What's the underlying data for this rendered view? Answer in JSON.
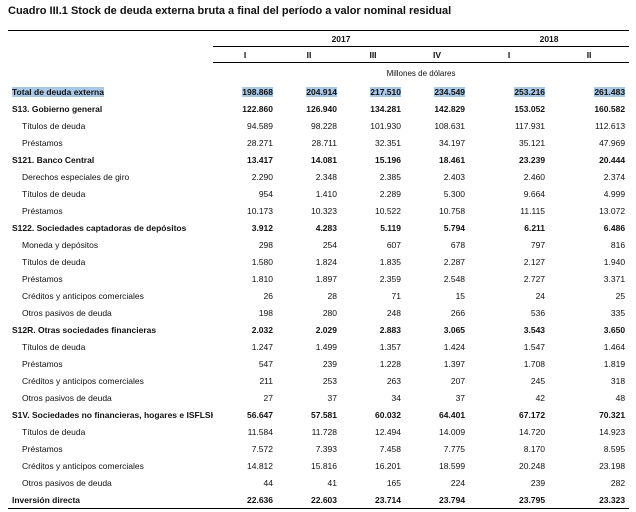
{
  "title": "Cuadro III.1 Stock de deuda externa bruta a final del período a valor nominal residual",
  "header": {
    "years": [
      {
        "label": "2017",
        "span": 4
      },
      {
        "label": "2018",
        "span": 2
      }
    ],
    "quarters": [
      "I",
      "II",
      "III",
      "IV",
      "I",
      "II"
    ],
    "unit": "Millones de dólares"
  },
  "table": {
    "total": {
      "label": "Total de deuda externa",
      "values": [
        "198.868",
        "204.914",
        "217.510",
        "234.549",
        "253.216",
        "261.483"
      ]
    },
    "groups": [
      {
        "label": "S13. Gobierno general",
        "values": [
          "122.860",
          "126.940",
          "134.281",
          "142.829",
          "153.052",
          "160.582"
        ],
        "items": [
          {
            "label": "Títulos de deuda",
            "values": [
              "94.589",
              "98.228",
              "101.930",
              "108.631",
              "117.931",
              "112.613"
            ]
          },
          {
            "label": "Préstamos",
            "values": [
              "28.271",
              "28.711",
              "32.351",
              "34.197",
              "35.121",
              "47.969"
            ]
          }
        ]
      },
      {
        "label": "S121. Banco Central",
        "values": [
          "13.417",
          "14.081",
          "15.196",
          "18.461",
          "23.239",
          "20.444"
        ],
        "items": [
          {
            "label": "Derechos especiales de giro",
            "values": [
              "2.290",
              "2.348",
              "2.385",
              "2.403",
              "2.460",
              "2.374"
            ]
          },
          {
            "label": "Títulos de deuda",
            "values": [
              "954",
              "1.410",
              "2.289",
              "5.300",
              "9.664",
              "4.999"
            ]
          },
          {
            "label": "Préstamos",
            "values": [
              "10.173",
              "10.323",
              "10.522",
              "10.758",
              "11.115",
              "13.072"
            ]
          }
        ]
      },
      {
        "label": "S122. Sociedades captadoras de depósitos",
        "values": [
          "3.912",
          "4.283",
          "5.119",
          "5.794",
          "6.211",
          "6.486"
        ],
        "items": [
          {
            "label": "Moneda y depósitos",
            "values": [
              "298",
              "254",
              "607",
              "678",
              "797",
              "816"
            ]
          },
          {
            "label": "Títulos de deuda",
            "values": [
              "1.580",
              "1.824",
              "1.835",
              "2.287",
              "2.127",
              "1.940"
            ]
          },
          {
            "label": "Préstamos",
            "values": [
              "1.810",
              "1.897",
              "2.359",
              "2.548",
              "2.727",
              "3.371"
            ]
          },
          {
            "label": "Créditos y anticipos comerciales",
            "values": [
              "26",
              "28",
              "71",
              "15",
              "24",
              "25"
            ]
          },
          {
            "label": "Otros pasivos de deuda",
            "values": [
              "198",
              "280",
              "248",
              "266",
              "536",
              "335"
            ]
          }
        ]
      },
      {
        "label": "S12R. Otras sociedades financieras",
        "values": [
          "2.032",
          "2.029",
          "2.883",
          "3.065",
          "3.543",
          "3.650"
        ],
        "items": [
          {
            "label": "Títulos de deuda",
            "values": [
              "1.247",
              "1.499",
              "1.357",
              "1.424",
              "1.547",
              "1.464"
            ]
          },
          {
            "label": "Préstamos",
            "values": [
              "547",
              "239",
              "1.228",
              "1.397",
              "1.708",
              "1.819"
            ]
          },
          {
            "label": "Créditos y anticipos comerciales",
            "values": [
              "211",
              "253",
              "263",
              "207",
              "245",
              "318"
            ]
          },
          {
            "label": "Otros pasivos de deuda",
            "values": [
              "27",
              "37",
              "34",
              "37",
              "42",
              "48"
            ]
          }
        ]
      },
      {
        "label": "S1V. Sociedades no financieras, hogares e ISFLSH",
        "values": [
          "56.647",
          "57.581",
          "60.032",
          "64.401",
          "67.172",
          "70.321"
        ],
        "items": [
          {
            "label": "Títulos de deuda",
            "values": [
              "11.584",
              "11.728",
              "12.494",
              "14.009",
              "14.720",
              "14.923"
            ]
          },
          {
            "label": "Préstamos",
            "values": [
              "7.572",
              "7.393",
              "7.458",
              "7.775",
              "8.170",
              "8.595"
            ]
          },
          {
            "label": "Créditos y anticipos comerciales",
            "values": [
              "14.812",
              "15.816",
              "16.201",
              "18.599",
              "20.248",
              "23.198"
            ]
          },
          {
            "label": "Otros pasivos de deuda",
            "values": [
              "44",
              "41",
              "165",
              "224",
              "239",
              "282"
            ]
          }
        ]
      },
      {
        "label": "Inversión directa",
        "values": [
          "22.636",
          "22.603",
          "23.714",
          "23.794",
          "23.795",
          "23.323"
        ]
      }
    ]
  }
}
